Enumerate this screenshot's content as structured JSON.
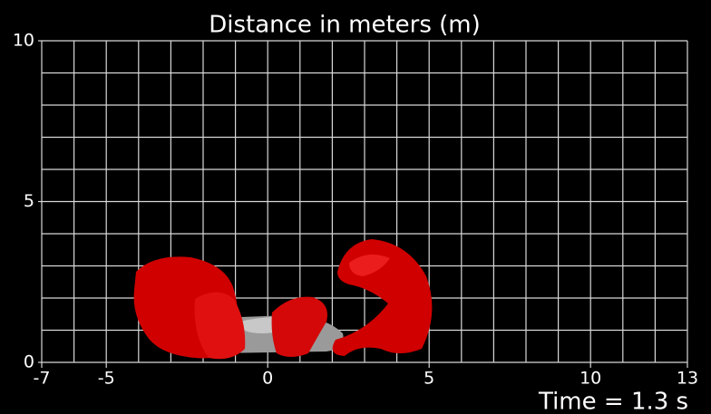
{
  "title": "Distance in meters (m)",
  "x_axis": {
    "range": [
      -7,
      13
    ],
    "ticks": [
      -7,
      -5,
      0,
      5,
      10,
      13
    ]
  },
  "y_axis": {
    "range": [
      0,
      10
    ],
    "ticks": [
      0,
      5,
      10
    ]
  },
  "time_label": "Time = 1.3 s"
}
